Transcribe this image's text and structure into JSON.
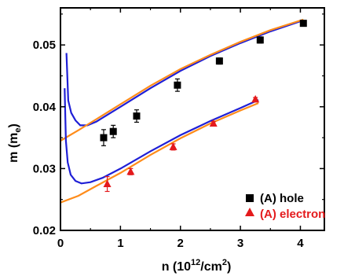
{
  "chart_data": {
    "type": "scatter",
    "xlabel": "n (10",
    "xlabel_sup": "12",
    "xlabel_tail": "/cm",
    "xlabel_sup2": "2",
    "xlabel_close": ")",
    "ylabel": "m (m",
    "ylabel_sub": "e",
    "ylabel_close": ")",
    "xlim": [
      0,
      4.4
    ],
    "ylim": [
      0.02,
      0.056
    ],
    "x_ticks": [
      0,
      1,
      2,
      3,
      4
    ],
    "x_tick_labels": [
      "0",
      "1",
      "2",
      "3",
      "4"
    ],
    "y_ticks": [
      0.02,
      0.03,
      0.04,
      0.05
    ],
    "y_tick_labels": [
      "0.02",
      "0.03",
      "0.04",
      "0.05"
    ],
    "legend_position": "bottom-right",
    "colors": {
      "hole": "#000000",
      "electron": "#e41a1c",
      "blue_curve": "#1f1fd6",
      "orange_curve": "#ff8c1a"
    },
    "series": [
      {
        "name": "(A) hole",
        "marker": "square",
        "color": "#000000",
        "points": [
          {
            "x": 0.72,
            "y": 0.035,
            "err": 0.0013
          },
          {
            "x": 0.88,
            "y": 0.036,
            "err": 0.001
          },
          {
            "x": 1.27,
            "y": 0.0385,
            "err": 0.001
          },
          {
            "x": 1.95,
            "y": 0.0435,
            "err": 0.001
          },
          {
            "x": 2.65,
            "y": 0.0474,
            "err": 0.0005
          },
          {
            "x": 3.33,
            "y": 0.0508,
            "err": 0.0005
          },
          {
            "x": 4.05,
            "y": 0.0535,
            "err": 0.0003
          }
        ]
      },
      {
        "name": "(A) electron",
        "marker": "triangle",
        "color": "#e41a1c",
        "points": [
          {
            "x": 0.78,
            "y": 0.0275,
            "err": 0.0012
          },
          {
            "x": 1.17,
            "y": 0.0295,
            "err": 0.0005
          },
          {
            "x": 1.88,
            "y": 0.0335,
            "err": 0.0005
          },
          {
            "x": 2.55,
            "y": 0.0373,
            "err": 0.0003
          },
          {
            "x": 3.25,
            "y": 0.0412,
            "err": 0.0003
          }
        ]
      }
    ],
    "curves": [
      {
        "color": "#1f1fd6",
        "points": [
          [
            0.1,
            0.0487
          ],
          [
            0.13,
            0.041
          ],
          [
            0.18,
            0.039
          ],
          [
            0.25,
            0.0378
          ],
          [
            0.33,
            0.037
          ],
          [
            0.45,
            0.037
          ],
          [
            0.6,
            0.0376
          ],
          [
            0.8,
            0.0388
          ],
          [
            1.0,
            0.04
          ],
          [
            1.5,
            0.043
          ],
          [
            2.0,
            0.0458
          ],
          [
            2.5,
            0.0482
          ],
          [
            3.0,
            0.0503
          ],
          [
            3.5,
            0.0522
          ],
          [
            4.05,
            0.054
          ]
        ]
      },
      {
        "color": "#ff8c1a",
        "points": [
          [
            0,
            0.0345
          ],
          [
            0.3,
            0.0362
          ],
          [
            0.6,
            0.038
          ],
          [
            1.0,
            0.0404
          ],
          [
            1.5,
            0.0434
          ],
          [
            2.0,
            0.0461
          ],
          [
            2.5,
            0.0484
          ],
          [
            3.0,
            0.0505
          ],
          [
            3.5,
            0.0524
          ],
          [
            4.05,
            0.0541
          ]
        ]
      },
      {
        "color": "#1f1fd6",
        "points": [
          [
            0.07,
            0.043
          ],
          [
            0.09,
            0.0345
          ],
          [
            0.12,
            0.031
          ],
          [
            0.17,
            0.029
          ],
          [
            0.25,
            0.028
          ],
          [
            0.35,
            0.0276
          ],
          [
            0.5,
            0.0278
          ],
          [
            0.7,
            0.0285
          ],
          [
            1.0,
            0.03
          ],
          [
            1.5,
            0.0328
          ],
          [
            2.0,
            0.0354
          ],
          [
            2.5,
            0.0377
          ],
          [
            3.0,
            0.0398
          ],
          [
            3.3,
            0.0411
          ]
        ]
      },
      {
        "color": "#ff8c1a",
        "points": [
          [
            0,
            0.0245
          ],
          [
            0.3,
            0.0256
          ],
          [
            0.6,
            0.0272
          ],
          [
            1.0,
            0.0293
          ],
          [
            1.5,
            0.0322
          ],
          [
            2.0,
            0.0349
          ],
          [
            2.5,
            0.0373
          ],
          [
            3.0,
            0.0394
          ],
          [
            3.3,
            0.0406
          ]
        ]
      }
    ]
  }
}
